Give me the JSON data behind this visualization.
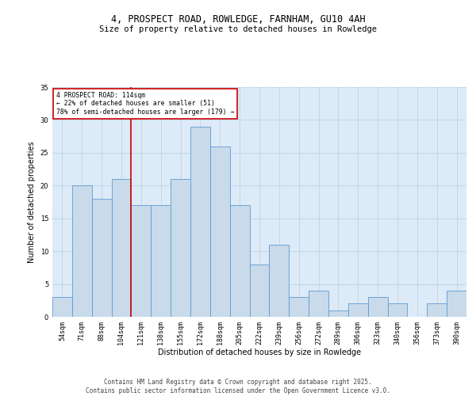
{
  "title": "4, PROSPECT ROAD, ROWLEDGE, FARNHAM, GU10 4AH",
  "subtitle": "Size of property relative to detached houses in Rowledge",
  "xlabel": "Distribution of detached houses by size in Rowledge",
  "ylabel": "Number of detached properties",
  "categories": [
    "54sqm",
    "71sqm",
    "88sqm",
    "104sqm",
    "121sqm",
    "138sqm",
    "155sqm",
    "172sqm",
    "188sqm",
    "205sqm",
    "222sqm",
    "239sqm",
    "256sqm",
    "272sqm",
    "289sqm",
    "306sqm",
    "323sqm",
    "340sqm",
    "356sqm",
    "373sqm",
    "390sqm"
  ],
  "values": [
    3,
    20,
    18,
    21,
    17,
    17,
    21,
    29,
    26,
    17,
    8,
    11,
    3,
    4,
    1,
    2,
    3,
    2,
    0,
    2,
    4
  ],
  "bar_color": "#c9daea",
  "bar_edge_color": "#5b9bd5",
  "background_color": "#ddeaf7",
  "grid_color": "#b8cfe4",
  "redline_x": 3.5,
  "annotation_text": "4 PROSPECT ROAD: 114sqm\n← 22% of detached houses are smaller (51)\n78% of semi-detached houses are larger (179) →",
  "annotation_box_color": "#ffffff",
  "annotation_box_edge": "#cc0000",
  "ylim": [
    0,
    35
  ],
  "yticks": [
    0,
    5,
    10,
    15,
    20,
    25,
    30,
    35
  ],
  "footer": "Contains HM Land Registry data © Crown copyright and database right 2025.\nContains public sector information licensed under the Open Government Licence v3.0.",
  "title_fontsize": 8.5,
  "subtitle_fontsize": 7.5,
  "label_fontsize": 7,
  "tick_fontsize": 6,
  "footer_fontsize": 5.5,
  "annotation_fontsize": 5.8
}
